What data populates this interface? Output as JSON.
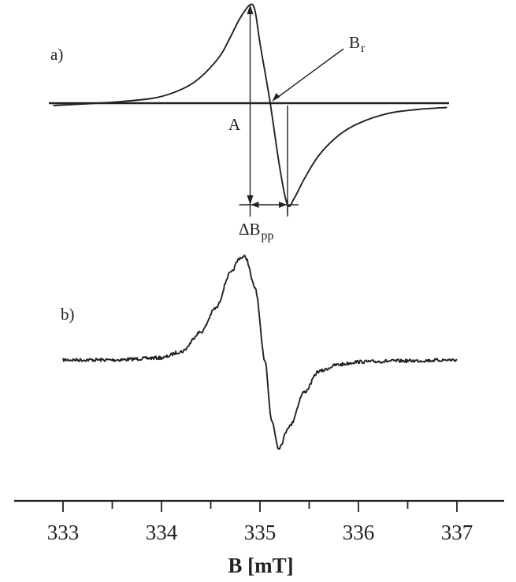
{
  "chart_data": {
    "type": "line",
    "xlabel": "B [mT]",
    "xlim": [
      333,
      337
    ],
    "x_ticks": [
      "333",
      "334",
      "335",
      "336",
      "337"
    ],
    "grid": false,
    "panels": [
      {
        "label": "a)",
        "series": [
          {
            "x": [
              332.9,
              333.3,
              333.6,
              333.9,
              334.1,
              334.3,
              334.45,
              334.6,
              334.7,
              334.8,
              334.9,
              334.95,
              335.0,
              335.1,
              335.2,
              335.28,
              335.35,
              335.45,
              335.6,
              335.8,
              336.0,
              336.3,
              336.6,
              336.9
            ],
            "y": [
              0.0,
              0.02,
              0.04,
              0.07,
              0.12,
              0.21,
              0.33,
              0.5,
              0.68,
              0.87,
              1.0,
              0.94,
              0.62,
              0.05,
              -0.62,
              -1.0,
              -0.93,
              -0.74,
              -0.5,
              -0.3,
              -0.18,
              -0.08,
              -0.04,
              -0.02
            ]
          }
        ],
        "annotations": {
          "resonance_label": "B",
          "resonance_sub": "r",
          "amplitude_label": "A",
          "width_label": "ΔB",
          "width_sub": "pp"
        }
      },
      {
        "label": "b)",
        "series": [
          {
            "x": [
              333.0,
              333.5,
              334.0,
              334.2,
              334.4,
              334.55,
              334.7,
              334.8,
              334.85,
              334.95,
              335.05,
              335.12,
              335.19,
              335.3,
              335.45,
              335.6,
              335.8,
              336.0,
              336.5,
              337.0
            ],
            "y": [
              0.0,
              0.0,
              0.02,
              0.08,
              0.27,
              0.5,
              0.84,
              0.99,
              1.0,
              0.7,
              0.0,
              -0.65,
              -0.93,
              -0.7,
              -0.34,
              -0.12,
              -0.05,
              -0.02,
              -0.01,
              0.0
            ]
          }
        ]
      }
    ]
  }
}
